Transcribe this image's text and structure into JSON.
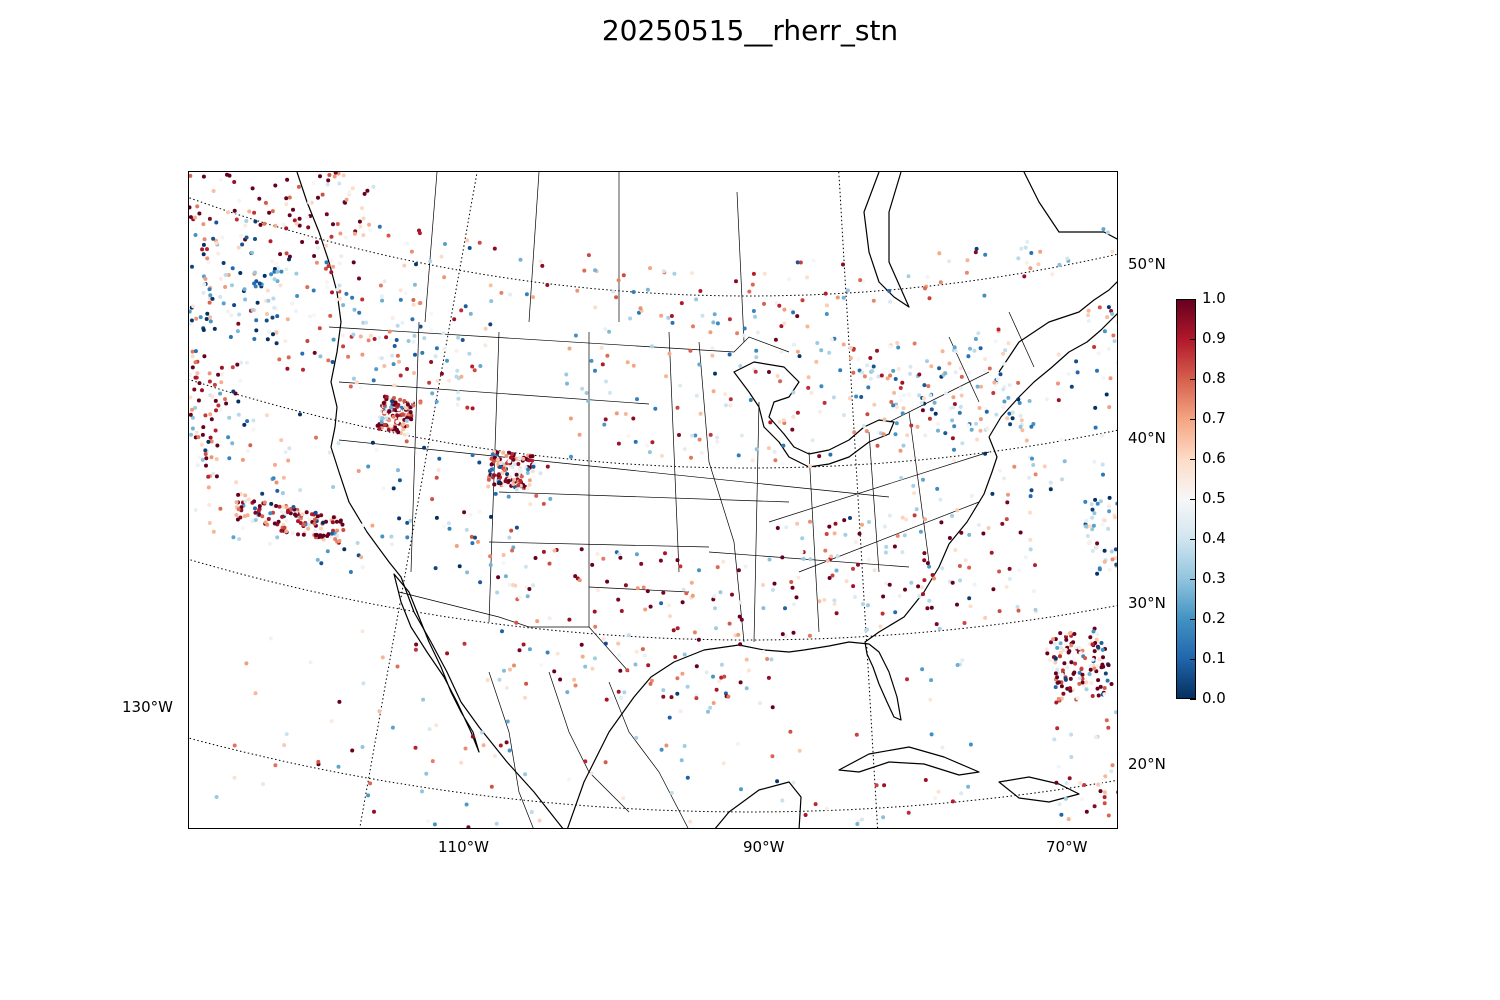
{
  "title": "20250515__rherr_stn",
  "map": {
    "projection": "lambert-conformal",
    "meridians": [
      "130°W",
      "110°W",
      "90°W",
      "70°W"
    ],
    "parallels": [
      "20°N",
      "30°N",
      "40°N",
      "50°N"
    ],
    "gridline_style": "dotted"
  },
  "colorbar": {
    "colormap": "RdBu_r",
    "range": [
      0.0,
      1.0
    ],
    "tick_labels": [
      "0.0",
      "0.1",
      "0.2",
      "0.3",
      "0.4",
      "0.5",
      "0.6",
      "0.7",
      "0.8",
      "0.9",
      "1.0"
    ],
    "colors": [
      "#053061",
      "#2166ac",
      "#4393c3",
      "#92c5de",
      "#d1e5f0",
      "#f7f7f7",
      "#fddbc7",
      "#f4a582",
      "#d6604d",
      "#b2182b",
      "#67001f"
    ]
  },
  "chart_data": {
    "type": "scatter",
    "title": "20250515__rherr_stn",
    "value_range": [
      0.0,
      1.0
    ],
    "regions": [
      {
        "lon_range": [
          -125,
          -115
        ],
        "lat_range": [
          48.5,
          54
        ],
        "value": 0.9
      },
      {
        "lon_range": [
          -124.5,
          -118
        ],
        "lat_range": [
          43,
          48.5
        ],
        "value": 0.3
      },
      {
        "lon_range": [
          -123.5,
          -119
        ],
        "lat_range": [
          35,
          42
        ],
        "value": 0.85
      },
      {
        "lon_range": [
          -118,
          -113
        ],
        "lat_range": [
          33,
          34.5
        ],
        "value": 0.85
      },
      {
        "lon_range": [
          -118,
          -108
        ],
        "lat_range": [
          42,
          49
        ],
        "value": 0.5
      },
      {
        "lon_range": [
          -112.5,
          -111
        ],
        "lat_range": [
          40,
          42
        ],
        "value": 0.9
      },
      {
        "lon_range": [
          -107,
          -105
        ],
        "lat_range": [
          38,
          40
        ],
        "value": 0.85
      },
      {
        "lon_range": [
          -120,
          -104
        ],
        "lat_range": [
          31.5,
          40
        ],
        "value": 0.38
      },
      {
        "lon_range": [
          -106,
          -94
        ],
        "lat_range": [
          26,
          35
        ],
        "value": 0.7
      },
      {
        "lon_range": [
          -104,
          -90
        ],
        "lat_range": [
          40,
          49
        ],
        "value": 0.55
      },
      {
        "lon_range": [
          -94,
          -82
        ],
        "lat_range": [
          30,
          37
        ],
        "value": 0.75
      },
      {
        "lon_range": [
          -82.5,
          -80
        ],
        "lat_range": [
          25,
          29
        ],
        "value": 0.85
      },
      {
        "lon_range": [
          -88,
          -70
        ],
        "lat_range": [
          37,
          45
        ],
        "value": 0.3
      },
      {
        "lon_range": [
          -90,
          -82
        ],
        "lat_range": [
          41,
          47
        ],
        "value": 0.5
      },
      {
        "lon_range": [
          -80,
          -76
        ],
        "lat_range": [
          32,
          36.5
        ],
        "value": 0.35
      },
      {
        "lon_range": [
          -78,
          -67
        ],
        "lat_range": [
          43,
          47.5
        ],
        "value": 0.55
      },
      {
        "lon_range": [
          -115,
          -68
        ],
        "lat_range": [
          49,
          52
        ],
        "value": 0.55
      },
      {
        "lon_range": [
          -116,
          -86
        ],
        "lat_range": [
          17,
          29
        ],
        "value": 0.6
      },
      {
        "lon_range": [
          -83,
          -73
        ],
        "lat_range": [
          18,
          24
        ],
        "value": 0.75
      }
    ]
  }
}
